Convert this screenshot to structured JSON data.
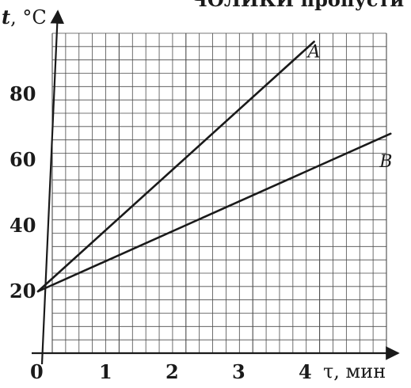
{
  "header_fragment": "ЧОЛИКИ пропусти",
  "chart_data": {
    "type": "line",
    "title": "",
    "xlabel": "τ, мин",
    "ylabel": "t, °C",
    "ylabel_var": "t",
    "ylabel_unit": ", °C",
    "xlim": [
      0,
      5.3
    ],
    "ylim": [
      10,
      100
    ],
    "x_ticks": [
      0,
      1,
      2,
      3,
      4
    ],
    "x_tick_labels": [
      "0",
      "1",
      "2",
      "3",
      "4"
    ],
    "y_ticks": [
      20,
      40,
      60,
      80
    ],
    "y_tick_labels": [
      "20",
      "40",
      "60",
      "80"
    ],
    "grid": true,
    "series": [
      {
        "name": "A",
        "x": [
          0,
          4.15
        ],
        "y": [
          20,
          96
        ]
      },
      {
        "name": "B",
        "x": [
          0,
          5.3
        ],
        "y": [
          20,
          68
        ]
      }
    ]
  }
}
